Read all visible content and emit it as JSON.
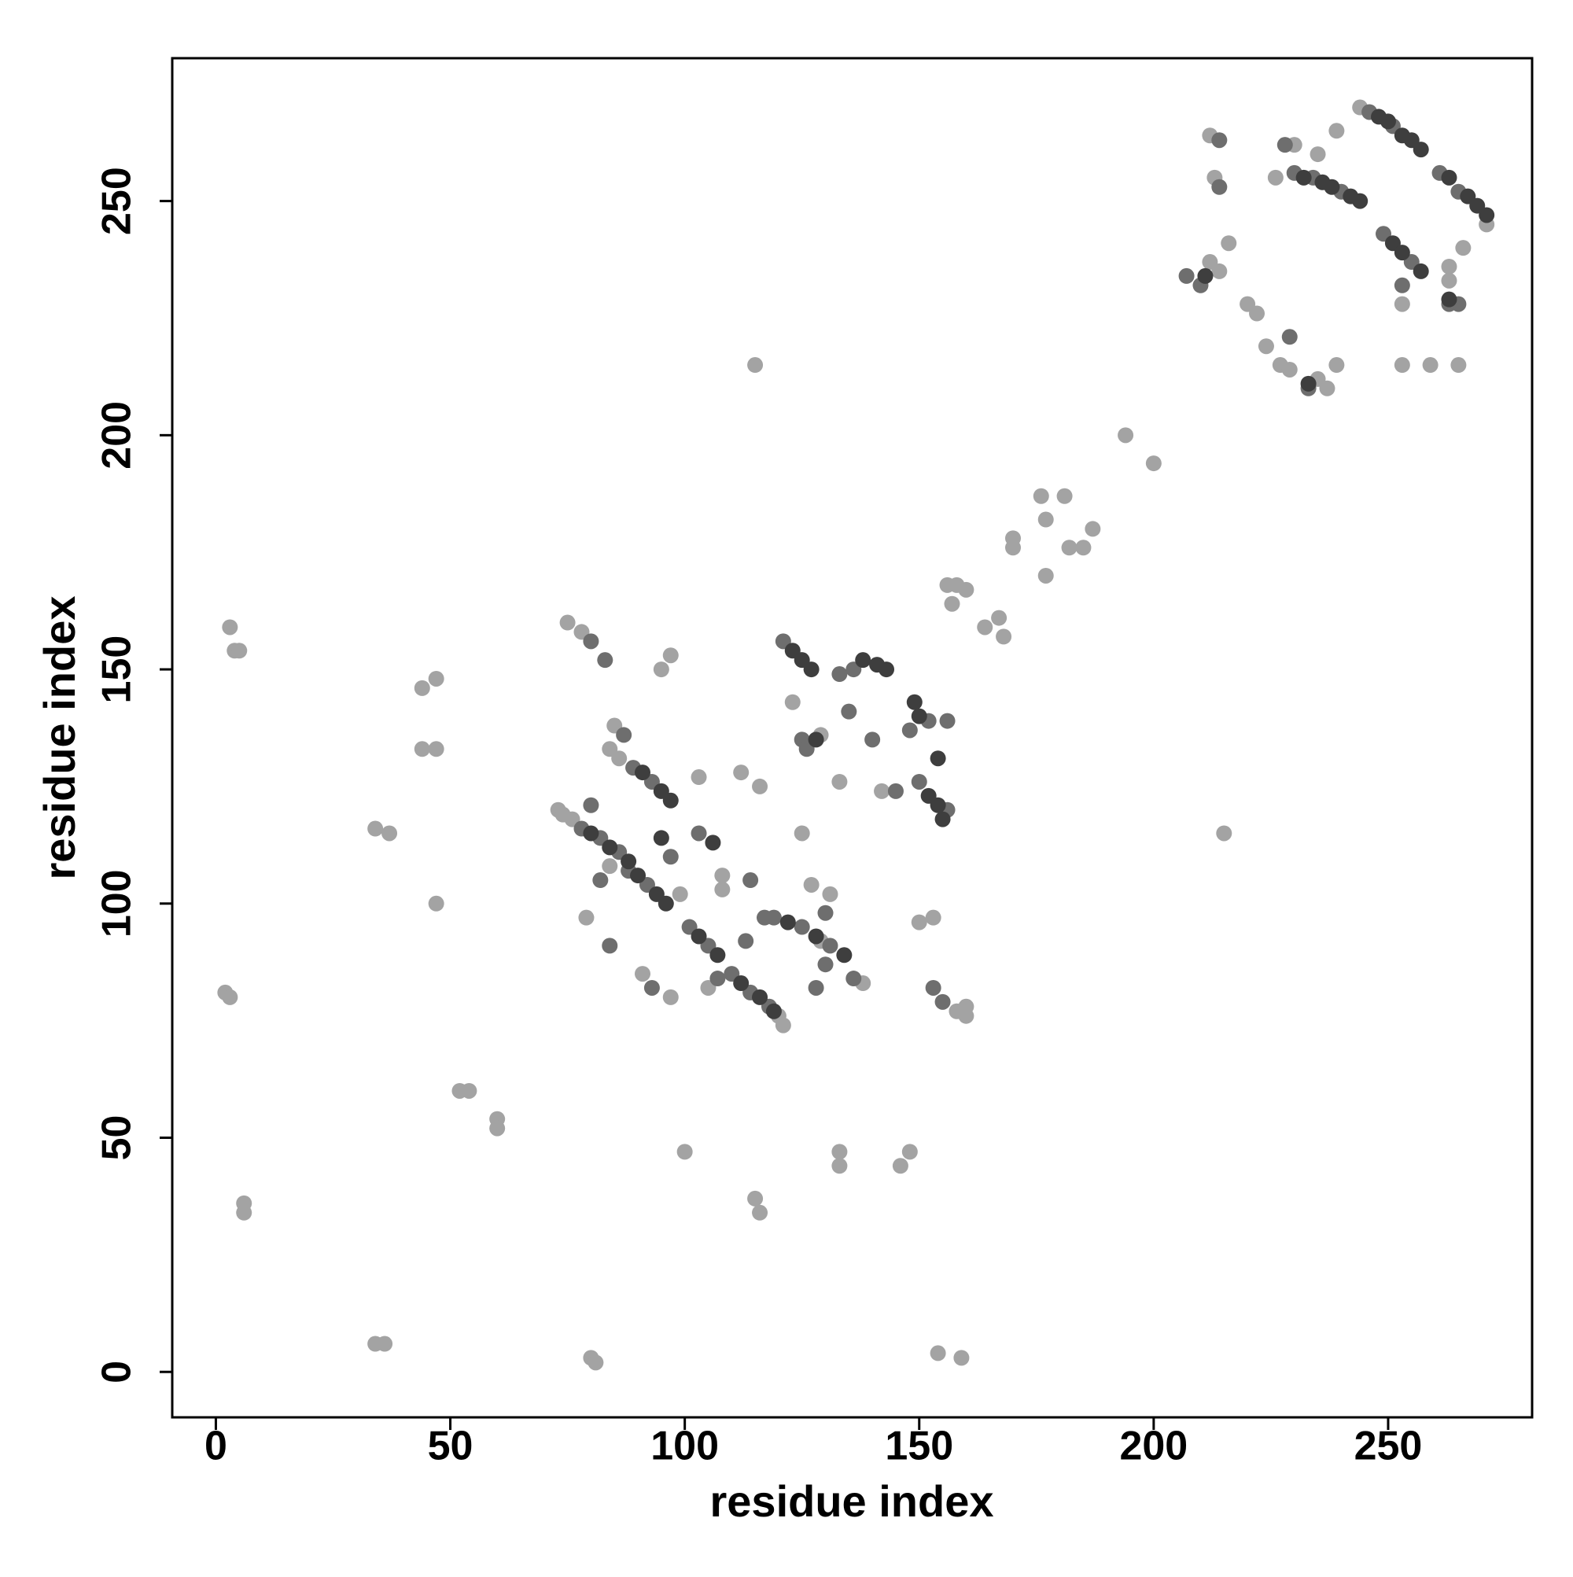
{
  "chart_data": {
    "type": "scatter",
    "xlabel": "residue index",
    "ylabel": "residue index",
    "xlim": [
      -9.3,
      280.7
    ],
    "ylim": [
      -9.7,
      280.5
    ],
    "xticks": [
      0,
      50,
      100,
      150,
      200,
      250
    ],
    "yticks": [
      0,
      50,
      100,
      150,
      200,
      250
    ],
    "grid": false,
    "series": [
      {
        "color": "#a3a3a3",
        "x": [
          3,
          4,
          5,
          44,
          47,
          44,
          47,
          34,
          37,
          47,
          2,
          3,
          52,
          54,
          60,
          60,
          6,
          6,
          34,
          36,
          80,
          81,
          100,
          115,
          116,
          133,
          133,
          146,
          148,
          154,
          159,
          115,
          215,
          194,
          200,
          97,
          95,
          97,
          176,
          181,
          177,
          170,
          170,
          177,
          187,
          185,
          182,
          156,
          158,
          157,
          164,
          167,
          168,
          160,
          73,
          74,
          76,
          84,
          86,
          121,
          120,
          158,
          160,
          160,
          133,
          142,
          123,
          108,
          108,
          127,
          125,
          112,
          103,
          75,
          78,
          79,
          91,
          138,
          150,
          153,
          116,
          85,
          84,
          99,
          105,
          131,
          129,
          129,
          244,
          271,
          212,
          214,
          216,
          220,
          222,
          224,
          227,
          229,
          235,
          237,
          239,
          235,
          239,
          253,
          253,
          263,
          263,
          265,
          266,
          259,
          213,
          212,
          230,
          226
        ],
        "y": [
          159,
          154,
          154,
          146,
          148,
          133,
          133,
          116,
          115,
          100,
          81,
          80,
          60,
          60,
          54,
          52,
          36,
          34,
          6,
          6,
          3,
          2,
          47,
          37,
          34,
          47,
          44,
          44,
          47,
          4,
          3,
          215,
          115,
          200,
          194,
          153,
          150,
          80,
          187,
          187,
          182,
          178,
          176,
          170,
          180,
          176,
          176,
          168,
          168,
          164,
          159,
          161,
          157,
          167,
          120,
          119,
          118,
          133,
          131,
          74,
          76,
          77,
          78,
          76,
          126,
          124,
          143,
          106,
          103,
          104,
          115,
          128,
          127,
          160,
          158,
          97,
          85,
          83,
          96,
          97,
          125,
          138,
          108,
          102,
          82,
          102,
          92,
          136,
          270,
          245,
          237,
          235,
          241,
          228,
          226,
          219,
          215,
          214,
          212,
          210,
          215,
          260,
          265,
          228,
          215,
          236,
          233,
          215,
          240,
          215,
          255,
          264,
          262,
          255
        ]
      },
      {
        "color": "#6e6e6e",
        "x": [
          78,
          82,
          86,
          89,
          93,
          88,
          92,
          101,
          105,
          110,
          114,
          118,
          119,
          125,
          131,
          121,
          133,
          136,
          148,
          152,
          150,
          156,
          153,
          155,
          125,
          103,
          114,
          80,
          83,
          84,
          93,
          130,
          136,
          87,
          80,
          82,
          97,
          107,
          113,
          117,
          130,
          128,
          135,
          126,
          140,
          145,
          156,
          246,
          251,
          230,
          234,
          240,
          261,
          265,
          249,
          255,
          207,
          210,
          214,
          214,
          228,
          229,
          233,
          253,
          263,
          265
        ],
        "y": [
          116,
          114,
          111,
          129,
          126,
          107,
          104,
          95,
          91,
          85,
          81,
          78,
          97,
          95,
          91,
          156,
          149,
          150,
          137,
          139,
          126,
          120,
          82,
          79,
          135,
          115,
          105,
          156,
          152,
          91,
          82,
          87,
          84,
          136,
          121,
          105,
          110,
          84,
          92,
          97,
          98,
          82,
          141,
          133,
          135,
          124,
          139,
          269,
          266,
          256,
          255,
          252,
          256,
          252,
          243,
          237,
          234,
          232,
          253,
          263,
          262,
          221,
          210,
          232,
          228,
          228
        ]
      },
      {
        "color": "#3e3e3e",
        "x": [
          80,
          84,
          88,
          91,
          95,
          97,
          90,
          94,
          96,
          103,
          107,
          112,
          116,
          119,
          122,
          128,
          134,
          123,
          125,
          127,
          138,
          141,
          143,
          149,
          150,
          152,
          154,
          155,
          106,
          95,
          128,
          154,
          248,
          250,
          253,
          255,
          257,
          232,
          236,
          238,
          242,
          244,
          263,
          267,
          269,
          271,
          251,
          253,
          257,
          233,
          211,
          263
        ],
        "y": [
          115,
          112,
          109,
          128,
          124,
          122,
          106,
          102,
          100,
          93,
          89,
          83,
          80,
          77,
          96,
          93,
          89,
          154,
          152,
          150,
          152,
          151,
          150,
          143,
          140,
          123,
          121,
          118,
          113,
          114,
          135,
          131,
          268,
          267,
          264,
          263,
          261,
          255,
          254,
          253,
          251,
          250,
          255,
          251,
          249,
          247,
          241,
          239,
          235,
          211,
          234,
          229
        ]
      }
    ]
  }
}
